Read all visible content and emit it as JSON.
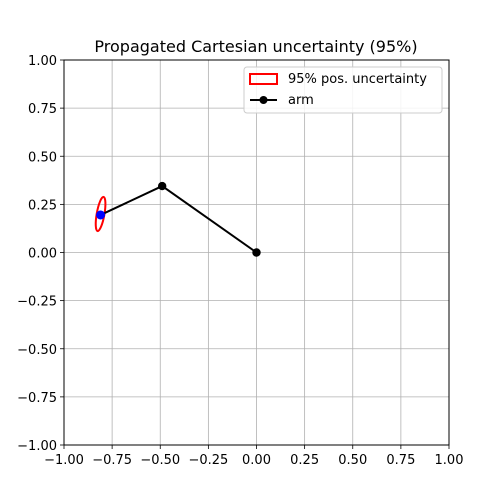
{
  "chart_data": {
    "type": "line",
    "title": "Propagated Cartesian uncertainty (95%)",
    "xlabel": "",
    "ylabel": "",
    "xlim": [
      -1.0,
      1.0
    ],
    "ylim": [
      -1.0,
      1.0
    ],
    "x_ticks": [
      "−1.00",
      "−0.75",
      "−0.50",
      "−0.25",
      "0.00",
      "0.25",
      "0.50",
      "0.75",
      "1.00"
    ],
    "y_ticks": [
      "−1.00",
      "−0.75",
      "−0.50",
      "−0.25",
      "0.00",
      "0.25",
      "0.50",
      "0.75",
      "1.00"
    ],
    "x_tick_values": [
      -1.0,
      -0.75,
      -0.5,
      -0.25,
      0.0,
      0.25,
      0.5,
      0.75,
      1.0
    ],
    "y_tick_values": [
      -1.0,
      -0.75,
      -0.5,
      -0.25,
      0.0,
      0.25,
      0.5,
      0.75,
      1.0
    ],
    "grid": true,
    "legend_position": "top-right",
    "series": [
      {
        "name": "arm",
        "kind": "line-with-markers",
        "color": "#000000",
        "points": [
          {
            "x": 0.0,
            "y": 0.0
          },
          {
            "x": -0.49,
            "y": 0.345
          },
          {
            "x": -0.81,
            "y": 0.195
          }
        ]
      },
      {
        "name": "95% pos. uncertainty",
        "kind": "ellipse",
        "color": "#ff0000",
        "center": {
          "x": -0.81,
          "y": 0.2
        },
        "semi_axis_major": 0.09,
        "semi_axis_minor": 0.02,
        "angle_deg": 80
      }
    ],
    "end_effector": {
      "x": -0.81,
      "y": 0.195,
      "color": "#0000ff"
    }
  }
}
